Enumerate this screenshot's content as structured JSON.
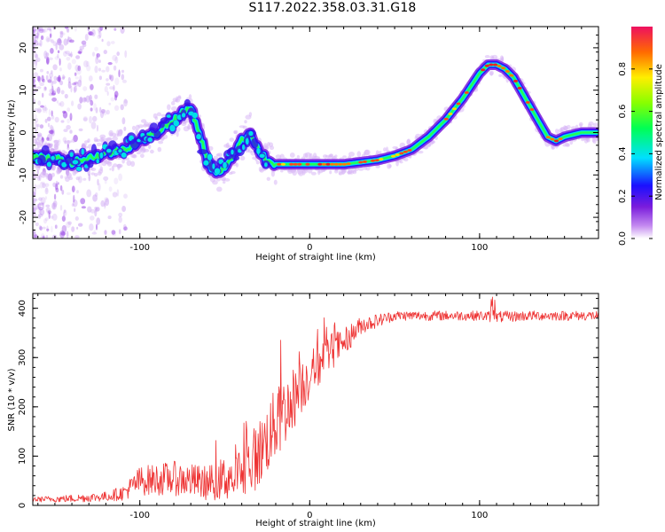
{
  "title": "S117.2022.358.03.31.G18",
  "chart_data": [
    {
      "type": "heatmap",
      "xlabel": "Height of straight line (km)",
      "ylabel": "Frequency (Hz)",
      "xlim": [
        -163,
        170
      ],
      "ylim": [
        -25,
        25
      ],
      "xticks": [
        -100,
        0,
        100
      ],
      "yticks": [
        -20,
        -10,
        0,
        10,
        20
      ],
      "colorbar": {
        "label": "Normalized spectral amplitude",
        "range": [
          0,
          1
        ],
        "ticks": [
          0.0,
          0.2,
          0.4,
          0.6,
          0.8
        ]
      },
      "ridge": {
        "x": [
          -160,
          -150,
          -140,
          -130,
          -120,
          -110,
          -100,
          -90,
          -80,
          -70,
          -65,
          -60,
          -55,
          -50,
          -45,
          -40,
          -35,
          -30,
          -25,
          -20,
          -10,
          0,
          10,
          20,
          30,
          40,
          50,
          60,
          70,
          80,
          90,
          100,
          105,
          110,
          115,
          120,
          130,
          140,
          145,
          150,
          160,
          170
        ],
        "y": [
          -6,
          -6,
          -7,
          -6,
          -5,
          -4,
          -2,
          0,
          3,
          6,
          0,
          -7,
          -10,
          -8,
          -5,
          -2,
          0,
          -4,
          -7,
          -7.5,
          -7.5,
          -7.5,
          -7.5,
          -7.5,
          -7,
          -6.5,
          -5.5,
          -4,
          -1,
          3,
          8,
          14,
          16,
          16,
          15,
          13,
          6,
          -1,
          -2,
          -1,
          0,
          0
        ]
      },
      "grid": false,
      "legend": "none"
    },
    {
      "type": "line",
      "xlabel": "Height of straight line (km)",
      "ylabel": "SNR (10 * v/v)",
      "xlim": [
        -163,
        170
      ],
      "ylim": [
        0,
        430
      ],
      "xticks": [
        -100,
        0,
        100
      ],
      "yticks": [
        0,
        100,
        200,
        300,
        400
      ],
      "color": "#ee3333",
      "envelope": {
        "x": [
          -163,
          -140,
          -120,
          -110,
          -100,
          -80,
          -60,
          -40,
          -30,
          -20,
          -10,
          0,
          10,
          20,
          30,
          50,
          70,
          100,
          110,
          130,
          150,
          170
        ],
        "mean": [
          12,
          14,
          18,
          25,
          50,
          55,
          45,
          65,
          105,
          165,
          215,
          265,
          305,
          330,
          365,
          385,
          385,
          385,
          382,
          385,
          385,
          385
        ],
        "spread": [
          5,
          8,
          10,
          15,
          30,
          35,
          35,
          55,
          70,
          75,
          65,
          50,
          40,
          30,
          18,
          10,
          10,
          10,
          12,
          10,
          10,
          10
        ]
      },
      "grid": false,
      "legend": "none"
    }
  ]
}
